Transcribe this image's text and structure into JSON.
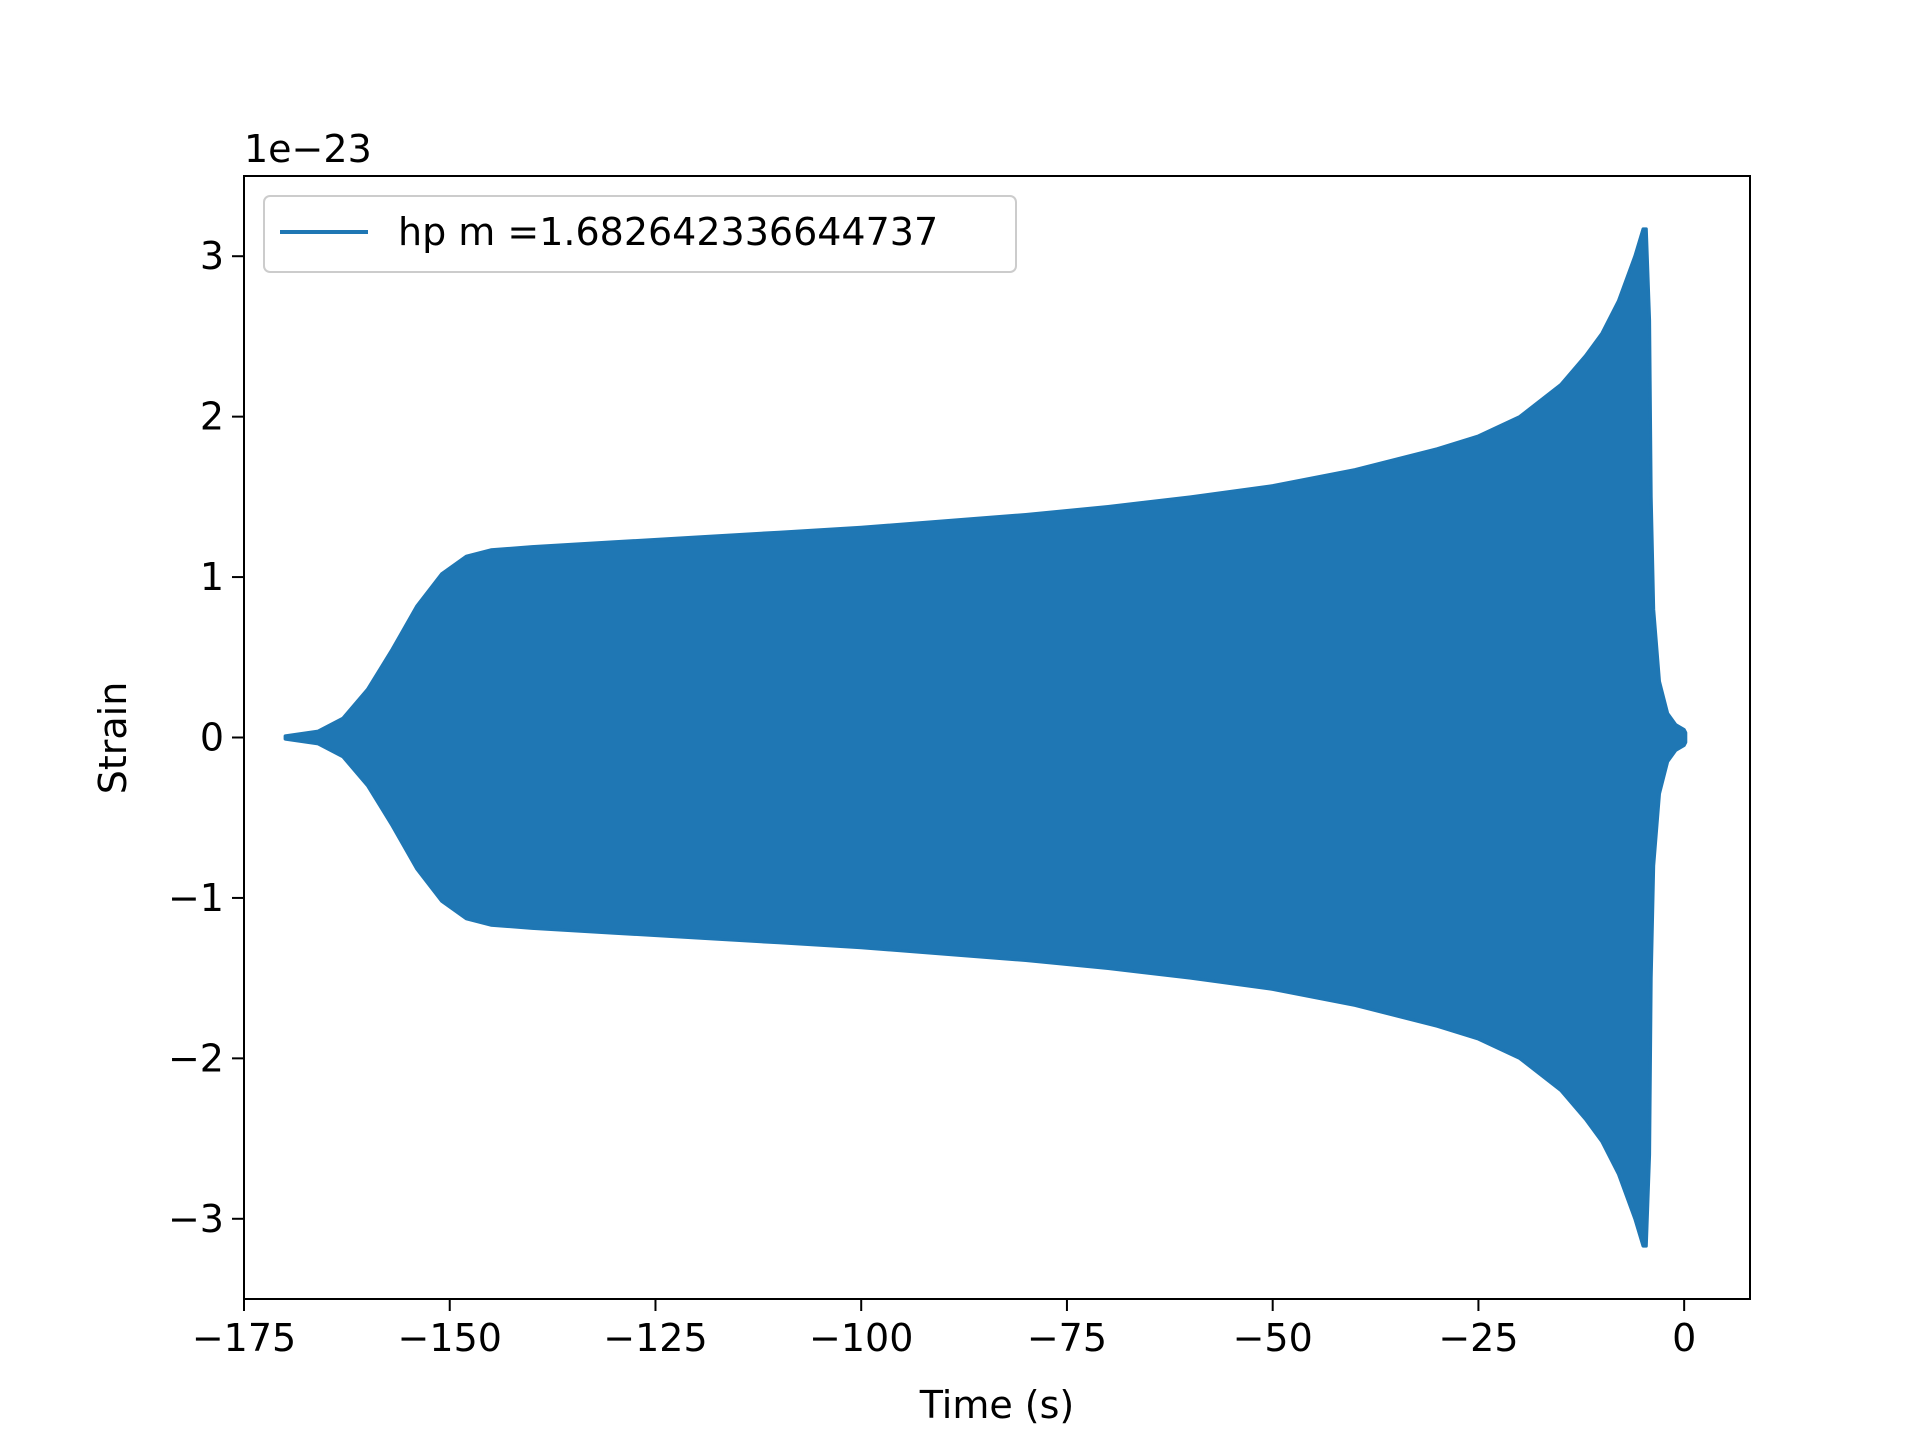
{
  "chart_data": {
    "type": "line",
    "title": "",
    "xlabel": "Time (s)",
    "ylabel": "Strain",
    "y_offset_label": "1e−23",
    "xlim": [
      -175,
      8
    ],
    "ylim": [
      -3.5,
      3.5
    ],
    "x_ticks": [
      {
        "value": -175,
        "label": "−175"
      },
      {
        "value": -150,
        "label": "−150"
      },
      {
        "value": -125,
        "label": "−125"
      },
      {
        "value": -100,
        "label": "−100"
      },
      {
        "value": -75,
        "label": "−75"
      },
      {
        "value": -50,
        "label": "−50"
      },
      {
        "value": -25,
        "label": "−25"
      },
      {
        "value": 0,
        "label": "0"
      }
    ],
    "y_ticks": [
      {
        "value": -3,
        "label": "−3"
      },
      {
        "value": -2,
        "label": "−2"
      },
      {
        "value": -1,
        "label": "−1"
      },
      {
        "value": 0,
        "label": "0"
      },
      {
        "value": 1,
        "label": "1"
      },
      {
        "value": 2,
        "label": "2"
      },
      {
        "value": 3,
        "label": "3"
      }
    ],
    "grid": false,
    "legend": {
      "placement": "upper-left"
    },
    "series": [
      {
        "name": "hp m =1.682642336644737",
        "color": "#1f77b4",
        "style": "dense-oscillation",
        "x_range": [
          -170,
          0.2
        ],
        "envelope": [
          [
            -170,
            0.01
          ],
          [
            -166,
            0.04
          ],
          [
            -163,
            0.12
          ],
          [
            -160,
            0.3
          ],
          [
            -157,
            0.55
          ],
          [
            -154,
            0.82
          ],
          [
            -151,
            1.02
          ],
          [
            -148,
            1.13
          ],
          [
            -145,
            1.17
          ],
          [
            -140,
            1.19
          ],
          [
            -130,
            1.22
          ],
          [
            -120,
            1.25
          ],
          [
            -110,
            1.28
          ],
          [
            -100,
            1.31
          ],
          [
            -90,
            1.35
          ],
          [
            -80,
            1.39
          ],
          [
            -70,
            1.44
          ],
          [
            -60,
            1.5
          ],
          [
            -50,
            1.57
          ],
          [
            -40,
            1.67
          ],
          [
            -30,
            1.8
          ],
          [
            -25,
            1.88
          ],
          [
            -20,
            2.0
          ],
          [
            -15,
            2.2
          ],
          [
            -12,
            2.38
          ],
          [
            -10,
            2.52
          ],
          [
            -8,
            2.72
          ],
          [
            -6,
            3.0
          ],
          [
            -5,
            3.17
          ],
          [
            -4.6,
            3.17
          ],
          [
            -4.2,
            2.6
          ],
          [
            -4.0,
            1.5
          ],
          [
            -3.7,
            0.8
          ],
          [
            -3,
            0.35
          ],
          [
            -2,
            0.15
          ],
          [
            -1,
            0.08
          ],
          [
            0,
            0.05
          ],
          [
            0.2,
            0.03
          ]
        ]
      }
    ]
  }
}
